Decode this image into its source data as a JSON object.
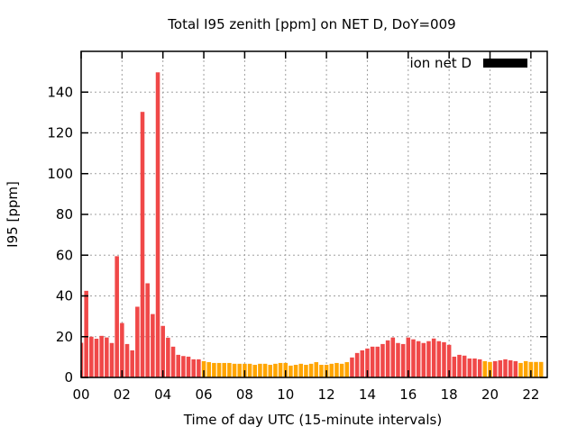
{
  "chart_data": {
    "type": "bar",
    "title": "Total I95 zenith [ppm] on NET D, DoY=009",
    "xlabel": "Time of day UTC (15-minute intervals)",
    "ylabel": "I95 [ppm]",
    "xlim": [
      0,
      22.8
    ],
    "ylim": [
      0,
      160
    ],
    "xticks": [
      "00",
      "02",
      "04",
      "06",
      "08",
      "10",
      "12",
      "14",
      "16",
      "18",
      "20",
      "22"
    ],
    "yticks": [
      "0",
      "20",
      "40",
      "60",
      "80",
      "100",
      "120",
      "140"
    ],
    "grid": true,
    "legend": {
      "label": "ion net D",
      "color": "#000000",
      "placement": "top-right"
    },
    "colors": {
      "high": "#f04848",
      "low": "#ffa500"
    },
    "interval_hours": 0.25,
    "values": [
      17,
      42.5,
      20,
      19,
      20.4,
      19.6,
      16.9,
      59.5,
      26.7,
      16.4,
      13.3,
      34.7,
      130.3,
      46.2,
      31.1,
      149.7,
      25.3,
      19.5,
      15.1,
      11.1,
      10.5,
      10.2,
      8.9,
      8.9,
      8,
      7.5,
      7.1,
      7.1,
      7.1,
      7.1,
      6.7,
      6.7,
      6.7,
      6.7,
      6.2,
      6.7,
      6.7,
      6.2,
      6.7,
      7.1,
      7.1,
      5.8,
      6.2,
      6.7,
      6.2,
      6.7,
      7.5,
      6.2,
      6.2,
      6.7,
      7.1,
      6.7,
      7.5,
      9.8,
      12,
      13.3,
      14.2,
      15.1,
      15.1,
      16.4,
      18.2,
      19.6,
      16.9,
      16.4,
      19.6,
      18.7,
      17.8,
      16.9,
      17.8,
      19.1,
      17.8,
      17.3,
      16,
      10.2,
      11.1,
      10.7,
      9.3,
      9.3,
      8.9,
      8,
      7.6,
      8,
      8.4,
      8.9,
      8.4,
      8,
      7.1,
      8,
      7.6,
      7.6,
      7.6
    ],
    "levels": [
      "high",
      "high",
      "high",
      "high",
      "high",
      "high",
      "high",
      "high",
      "high",
      "high",
      "high",
      "high",
      "high",
      "high",
      "high",
      "high",
      "high",
      "high",
      "high",
      "high",
      "high",
      "high",
      "high",
      "high",
      "low",
      "low",
      "low",
      "low",
      "low",
      "low",
      "low",
      "low",
      "low",
      "low",
      "low",
      "low",
      "low",
      "low",
      "low",
      "low",
      "low",
      "low",
      "low",
      "low",
      "low",
      "low",
      "low",
      "low",
      "low",
      "low",
      "low",
      "low",
      "low",
      "high",
      "high",
      "high",
      "high",
      "high",
      "high",
      "high",
      "high",
      "high",
      "high",
      "high",
      "high",
      "high",
      "high",
      "high",
      "high",
      "high",
      "high",
      "high",
      "high",
      "high",
      "high",
      "high",
      "high",
      "high",
      "high",
      "low",
      "low",
      "high",
      "high",
      "high",
      "high",
      "high",
      "low",
      "low",
      "low",
      "low",
      "low"
    ]
  }
}
